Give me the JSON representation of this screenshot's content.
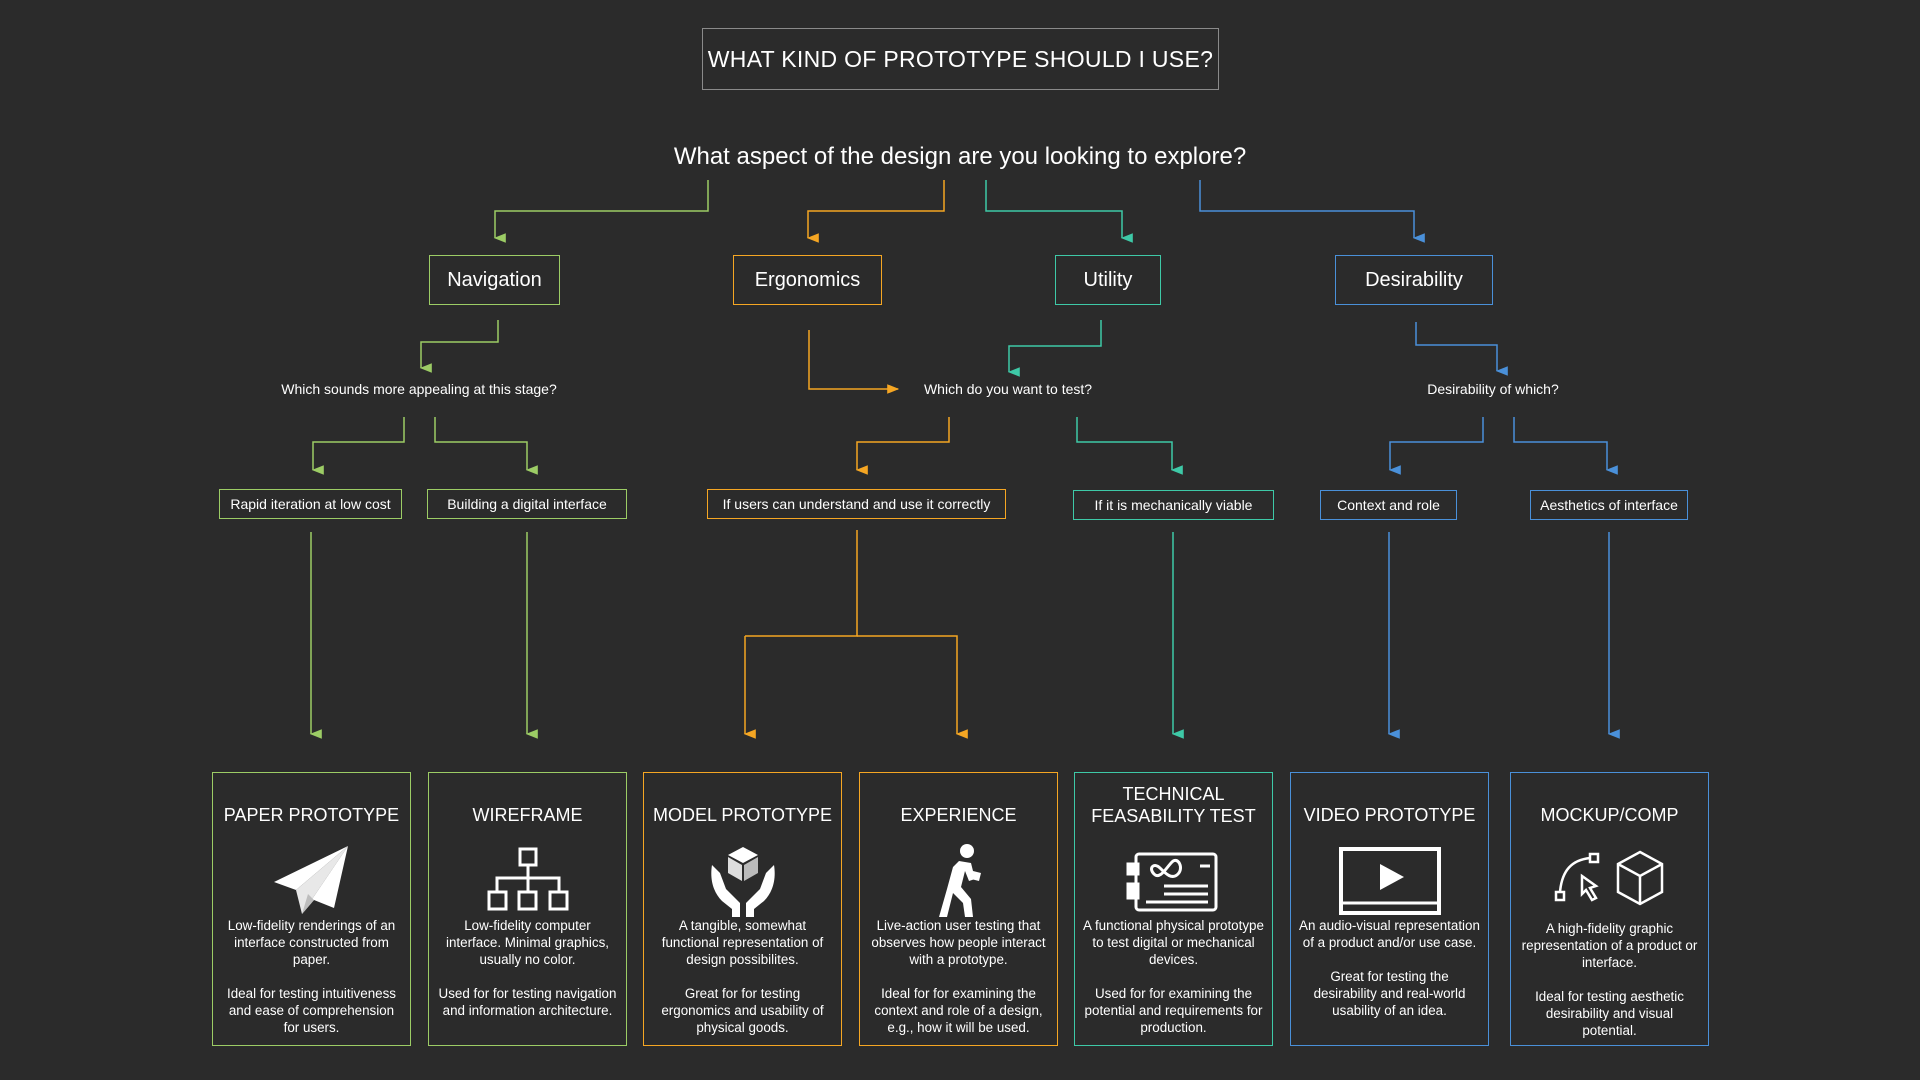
{
  "title": "WHAT KIND OF PROTOTYPE SHOULD I USE?",
  "main_question": "What aspect of the design are you looking to explore?",
  "colors": {
    "background": "#2b2b2b",
    "navigation": "#9ccc65",
    "ergonomics": "#f5a623",
    "utility": "#3ec9a7",
    "desirability": "#4a90d9",
    "title_border": "#8a8a8a"
  },
  "categories": {
    "navigation": "Navigation",
    "ergonomics": "Ergonomics",
    "utility": "Utility",
    "desirability": "Desirability"
  },
  "questions": {
    "navigation": "Which sounds more appealing at this stage?",
    "test": "Which do you want to test?",
    "desirability": "Desirability of which?"
  },
  "options": {
    "rapid": "Rapid iteration at low cost",
    "digital": "Building a digital interface",
    "understand": "If users can understand and use it correctly",
    "mechanical": "If it is mechanically viable",
    "context": "Context and role",
    "aesthetics": "Aesthetics of interface"
  },
  "cards": [
    {
      "title": "PAPER PROTOTYPE",
      "icon": "paper-plane-icon",
      "desc1": "Low-fidelity renderings of an interface constructed from paper.",
      "desc2": "Ideal for testing intuitiveness and ease of comprehension for users."
    },
    {
      "title": "WIREFRAME",
      "icon": "sitemap-icon",
      "desc1": "Low-fidelity computer interface. Minimal graphics, usually no color.",
      "desc2": "Used for for testing navigation and information architecture."
    },
    {
      "title": "MODEL PROTOTYPE",
      "icon": "hands-cube-icon",
      "desc1": "A tangible, somewhat functional representation of design possibilites.",
      "desc2": "Great for for testing ergonomics and usability of physical goods."
    },
    {
      "title": "EXPERIENCE",
      "icon": "walking-person-icon",
      "desc1": "Live-action user testing that observes how people interact with a prototype.",
      "desc2": "Ideal for for examining the context and role of a design, e.g., how it will be used."
    },
    {
      "title": "TECHNICAL FEASABILITY TEST",
      "icon": "circuit-board-icon",
      "desc1": "A functional physical prototype to test digital or mechanical devices.",
      "desc2": "Used for for examining the potential and requirements for production."
    },
    {
      "title": "VIDEO PROTOTYPE",
      "icon": "video-play-icon",
      "desc1": "An audio-visual representation of a product and/or use case.",
      "desc2": "Great for testing the desirability and real-world usability of an idea."
    },
    {
      "title": "MOCKUP/COMP",
      "icon": "vector-cube-icon",
      "desc1": "A high-fidelity graphic representation of a product or interface.",
      "desc2": "Ideal for testing aesthetic desirability and visual potential."
    }
  ]
}
